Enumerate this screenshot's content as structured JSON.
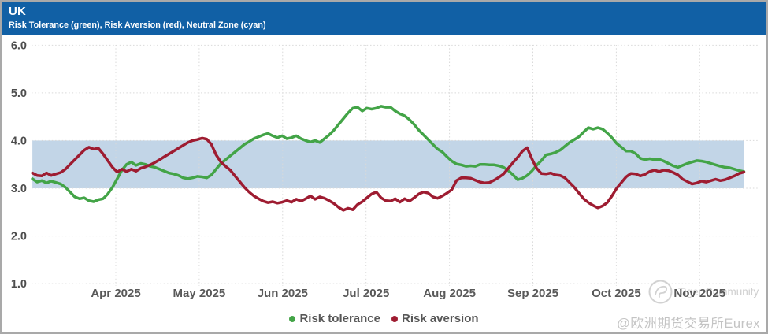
{
  "header": {
    "title": "UK",
    "subtitle": "Risk Tolerance (green), Risk Aversion (red), Neutral Zone (cyan)",
    "background_color": "#1160a5"
  },
  "watermark": {
    "community": "Tiger Community",
    "handle": "@欧洲期货交易所Eurex"
  },
  "chart_data": {
    "type": "line",
    "title": "UK",
    "subtitle": "Risk Tolerance (green), Risk Aversion (red), Neutral Zone (cyan)",
    "grid": true,
    "legend_position": "bottom-center",
    "x_axis": {
      "tick_labels": [
        "Apr 2025",
        "May 2025",
        "Jun 2025",
        "Jul 2025",
        "Aug 2025",
        "Sep 2025",
        "Oct 2025",
        "Nov 2025"
      ],
      "t_domain": [
        -1.0,
        7.53
      ]
    },
    "y_axis": {
      "tick_labels": [
        "6.0",
        "5.0",
        "4.0",
        "3.0",
        "2.0",
        "1.0"
      ],
      "tick_values": [
        6,
        5,
        4,
        3,
        2,
        1
      ],
      "range": [
        1.0,
        6.0
      ]
    },
    "neutral_zone": {
      "from": 3.0,
      "to": 4.0,
      "color": "#c2d5e7",
      "label": "Neutral Zone (cyan)"
    },
    "series": [
      {
        "name": "Risk tolerance",
        "color": "#43a447",
        "values": [
          3.2,
          3.13,
          3.16,
          3.11,
          3.15,
          3.12,
          3.09,
          3.02,
          2.92,
          2.82,
          2.78,
          2.8,
          2.74,
          2.72,
          2.76,
          2.78,
          2.88,
          3.02,
          3.2,
          3.38,
          3.5,
          3.55,
          3.48,
          3.52,
          3.5,
          3.46,
          3.44,
          3.4,
          3.36,
          3.32,
          3.3,
          3.27,
          3.22,
          3.2,
          3.22,
          3.25,
          3.24,
          3.22,
          3.28,
          3.4,
          3.52,
          3.6,
          3.68,
          3.76,
          3.84,
          3.92,
          3.98,
          4.04,
          4.08,
          4.12,
          4.15,
          4.1,
          4.06,
          4.1,
          4.04,
          4.06,
          4.1,
          4.04,
          4.0,
          3.97,
          4.0,
          3.96,
          4.04,
          4.12,
          4.22,
          4.34,
          4.46,
          4.58,
          4.68,
          4.7,
          4.62,
          4.68,
          4.66,
          4.68,
          4.72,
          4.7,
          4.7,
          4.62,
          4.56,
          4.52,
          4.44,
          4.34,
          4.22,
          4.12,
          4.02,
          3.92,
          3.82,
          3.76,
          3.66,
          3.57,
          3.51,
          3.49,
          3.46,
          3.47,
          3.46,
          3.5,
          3.5,
          3.49,
          3.49,
          3.47,
          3.44,
          3.37,
          3.28,
          3.18,
          3.21,
          3.27,
          3.36,
          3.48,
          3.58,
          3.7,
          3.72,
          3.75,
          3.8,
          3.88,
          3.96,
          4.02,
          4.08,
          4.18,
          4.27,
          4.24,
          4.27,
          4.24,
          4.16,
          4.06,
          3.94,
          3.86,
          3.78,
          3.78,
          3.73,
          3.63,
          3.6,
          3.62,
          3.6,
          3.61,
          3.57,
          3.52,
          3.47,
          3.44,
          3.48,
          3.52,
          3.55,
          3.58,
          3.57,
          3.55,
          3.52,
          3.49,
          3.46,
          3.44,
          3.43,
          3.4,
          3.37,
          3.35
        ]
      },
      {
        "name": "Risk aversion",
        "color": "#9e1c31",
        "values": [
          3.32,
          3.27,
          3.26,
          3.32,
          3.27,
          3.3,
          3.33,
          3.4,
          3.5,
          3.6,
          3.7,
          3.8,
          3.86,
          3.82,
          3.84,
          3.72,
          3.58,
          3.44,
          3.34,
          3.4,
          3.35,
          3.4,
          3.36,
          3.42,
          3.45,
          3.49,
          3.54,
          3.6,
          3.66,
          3.72,
          3.78,
          3.84,
          3.9,
          3.96,
          4.0,
          4.02,
          4.05,
          4.03,
          3.92,
          3.7,
          3.55,
          3.46,
          3.38,
          3.26,
          3.14,
          3.02,
          2.92,
          2.84,
          2.78,
          2.73,
          2.7,
          2.72,
          2.69,
          2.71,
          2.74,
          2.71,
          2.77,
          2.73,
          2.78,
          2.84,
          2.77,
          2.82,
          2.79,
          2.74,
          2.68,
          2.6,
          2.54,
          2.58,
          2.55,
          2.66,
          2.72,
          2.8,
          2.88,
          2.92,
          2.8,
          2.74,
          2.73,
          2.78,
          2.71,
          2.78,
          2.73,
          2.8,
          2.88,
          2.92,
          2.9,
          2.82,
          2.79,
          2.84,
          2.9,
          2.97,
          3.16,
          3.22,
          3.22,
          3.21,
          3.17,
          3.13,
          3.11,
          3.12,
          3.17,
          3.23,
          3.3,
          3.42,
          3.54,
          3.65,
          3.78,
          3.85,
          3.62,
          3.42,
          3.31,
          3.3,
          3.32,
          3.28,
          3.27,
          3.22,
          3.12,
          3.02,
          2.9,
          2.78,
          2.7,
          2.64,
          2.59,
          2.63,
          2.7,
          2.84,
          3.0,
          3.12,
          3.24,
          3.31,
          3.3,
          3.26,
          3.29,
          3.35,
          3.38,
          3.35,
          3.38,
          3.37,
          3.33,
          3.28,
          3.19,
          3.14,
          3.09,
          3.11,
          3.15,
          3.13,
          3.16,
          3.19,
          3.16,
          3.18,
          3.22,
          3.26,
          3.31,
          3.34
        ]
      }
    ]
  }
}
